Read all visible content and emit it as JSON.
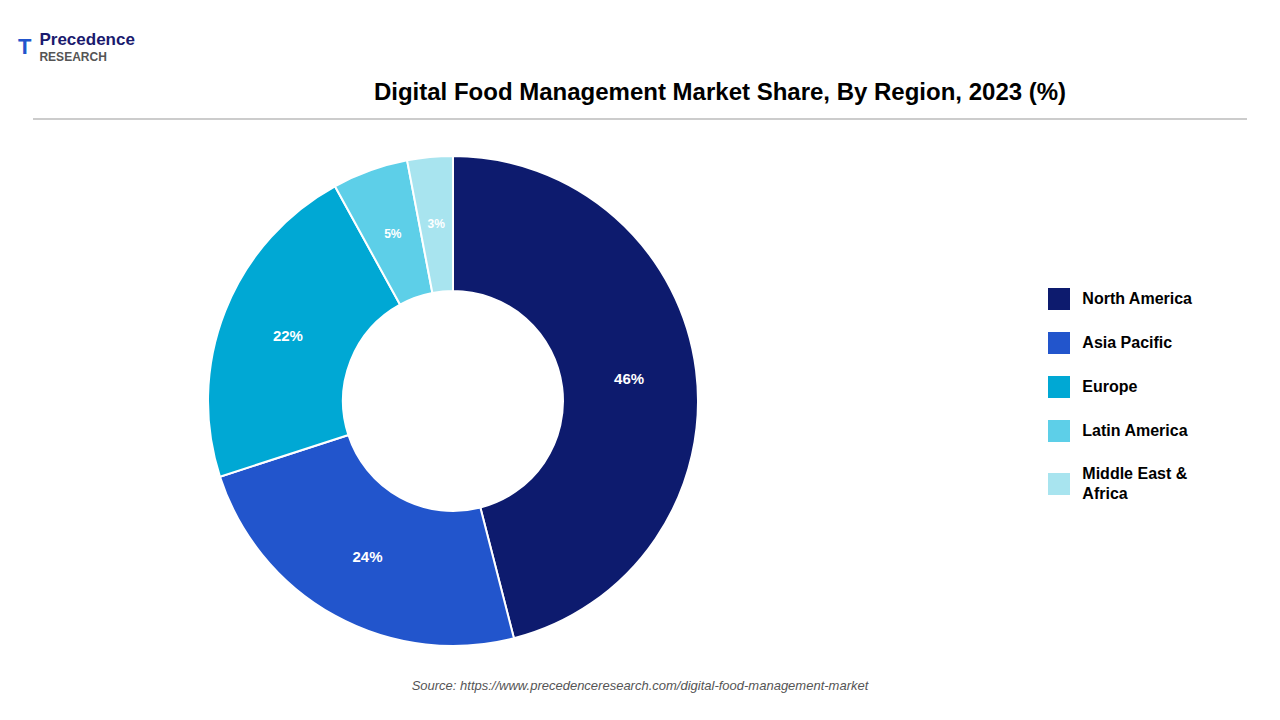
{
  "chart_data": {
    "type": "pie",
    "title": "Digital Food Management Market Share, By Region, 2023 (%)",
    "categories": [
      "North America",
      "Asia Pacific",
      "Europe",
      "Latin America",
      "Middle East &\nAfrica"
    ],
    "values": [
      46,
      24,
      22,
      5,
      3
    ],
    "value_labels": [
      "46%",
      "24%",
      "22%",
      "5%",
      "3%"
    ],
    "colors": [
      "#0d1b6e",
      "#2255cc",
      "#00a8d4",
      "#5dcfe8",
      "#a8e4ef"
    ],
    "data_labels": true,
    "legend": "right",
    "annotations": [
      "T",
      "Precedence",
      "RESEARCH",
      "Source: https://www.precedenceresearch.com/digital-food-management-market"
    ]
  }
}
